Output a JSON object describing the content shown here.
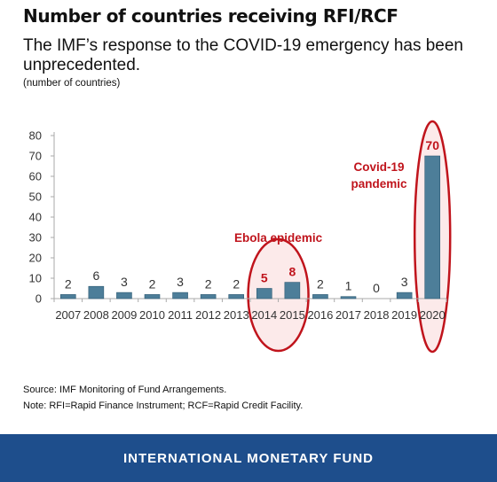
{
  "header": {
    "title": "Number of countries receiving RFI/RCF",
    "subtitle": "The IMF’s response to the COVID-19 emergency has been unprecedented.",
    "units": "(number of countries)"
  },
  "chart_data": {
    "type": "bar",
    "title": "Number of countries receiving RFI/RCF",
    "ylabel": "(number of countries)",
    "categories": [
      "2007",
      "2008",
      "2009",
      "2010",
      "2011",
      "2012",
      "2013",
      "2014",
      "2015",
      "2016",
      "2017",
      "2018",
      "2019",
      "2020"
    ],
    "values": [
      2,
      6,
      3,
      2,
      3,
      2,
      2,
      5,
      8,
      2,
      1,
      0,
      3,
      70
    ],
    "ylim": [
      0,
      80
    ],
    "yticks": [
      0,
      10,
      20,
      30,
      40,
      50,
      60,
      70,
      80
    ],
    "grid": false,
    "highlighted_categories": [
      "2014",
      "2015",
      "2020"
    ],
    "annotations": [
      {
        "text": "Ebola epidemic",
        "categories": [
          "2014",
          "2015"
        ]
      },
      {
        "text": "Covid-19 pandemic",
        "categories": [
          "2020"
        ]
      }
    ],
    "colors": {
      "bar": "#4d7e99",
      "bar_edge": "#2d5a73",
      "highlight": "#c0141c",
      "highlight_fill": "#fbe6e6",
      "axis": "#aaaaaa"
    }
  },
  "footer": {
    "source": "Source: IMF Monitoring of Fund Arrangements.",
    "note": "Note: RFI=Rapid Finance Instrument; RCF=Rapid Credit Facility.",
    "org": "INTERNATIONAL MONETARY FUND"
  }
}
